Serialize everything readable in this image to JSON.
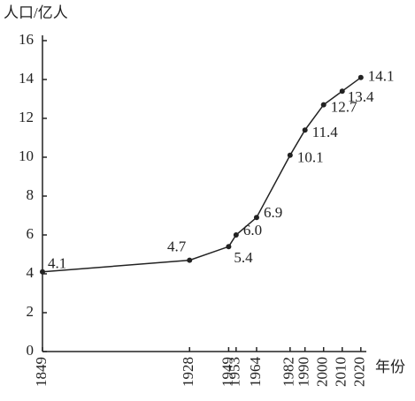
{
  "chart_data": {
    "type": "line",
    "y_label": "人口/亿人",
    "x_label": "年份",
    "x": [
      1849,
      1928,
      1949,
      1953,
      1964,
      1982,
      1990,
      2000,
      2010,
      2020
    ],
    "series": [
      {
        "color": "#222222",
        "values": [
          4.1,
          4.7,
          5.4,
          6.0,
          6.9,
          10.1,
          11.4,
          12.7,
          13.4,
          14.1
        ],
        "value_labels": [
          "4.1",
          "4.7",
          "5.4",
          "6.0",
          "6.9",
          "10.1",
          "11.4",
          "12.7",
          "13.4",
          "14.1"
        ]
      }
    ],
    "xlim": [
      1849,
      2022
    ],
    "xticks": [
      1849,
      1928,
      1949,
      1953,
      1964,
      1982,
      1990,
      2000,
      2010,
      2020
    ],
    "ylim": [
      0,
      16
    ],
    "yticks": [
      0,
      2,
      4,
      6,
      8,
      10,
      12,
      14,
      16
    ],
    "grid": false
  }
}
